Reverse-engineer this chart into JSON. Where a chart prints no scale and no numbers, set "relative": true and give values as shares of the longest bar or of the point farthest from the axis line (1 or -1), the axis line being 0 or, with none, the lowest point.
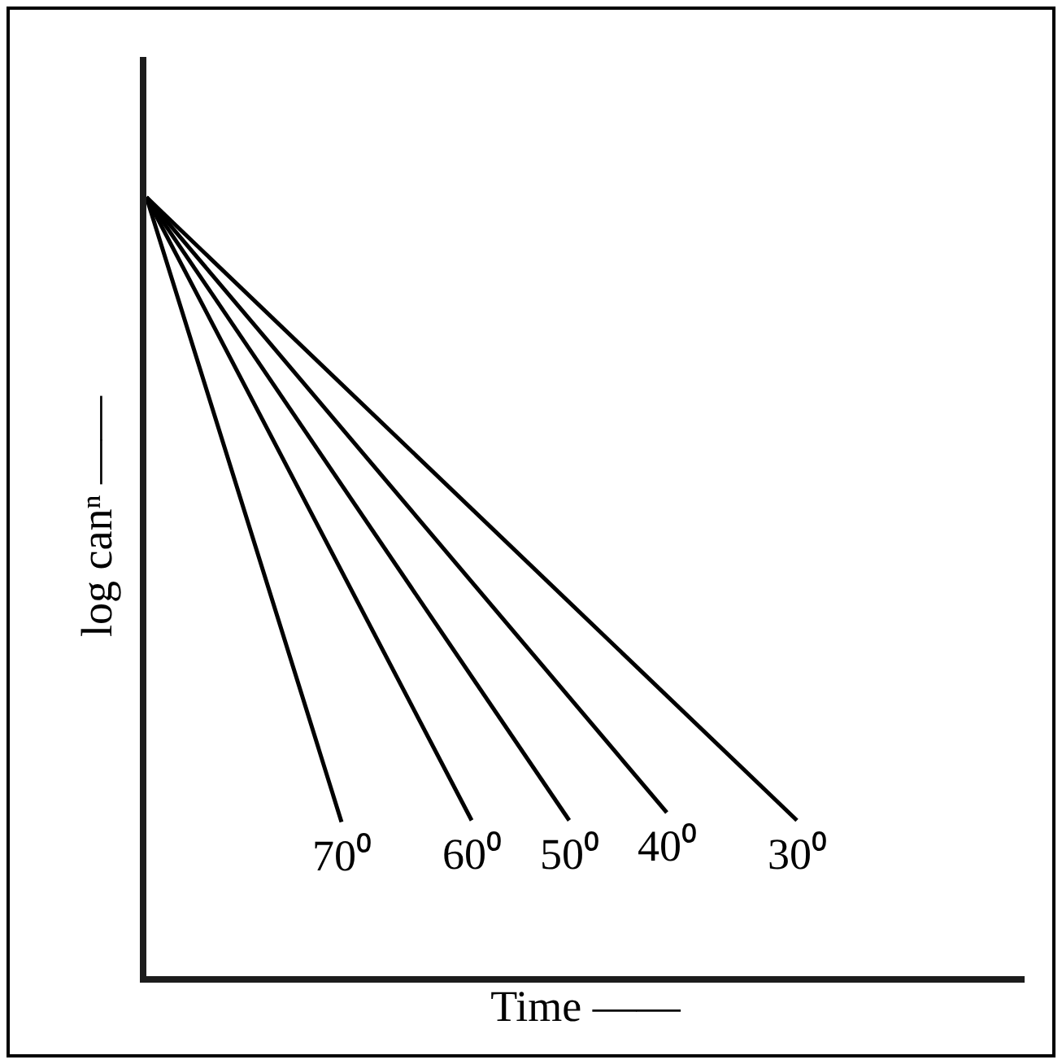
{
  "chart_data": {
    "type": "line",
    "relative": true,
    "xlabel": "Time ——",
    "ylabel": "log canⁿ ——",
    "grid": false,
    "legend": false,
    "marker": "none",
    "line_style": "solid",
    "categories": [
      null,
      null,
      null,
      null,
      null,
      null,
      null,
      null,
      null,
      null,
      null,
      null,
      null,
      null,
      null,
      null,
      null,
      null,
      null,
      null,
      null,
      null,
      null,
      null,
      null,
      null,
      null,
      null
    ],
    "series": [
      {
        "name": "70⁰",
        "color": "#000000",
        "values": [
          1,
          null,
          null,
          null,
          null,
          null,
          0.198,
          null,
          null,
          null,
          null,
          null,
          null,
          null,
          null,
          null,
          null,
          null,
          null,
          null,
          null,
          null,
          null,
          null,
          null,
          null,
          null,
          null
        ]
      },
      {
        "name": "60⁰",
        "color": "#000000",
        "values": [
          1,
          null,
          null,
          null,
          null,
          null,
          null,
          null,
          null,
          null,
          0.2,
          null,
          null,
          null,
          null,
          null,
          null,
          null,
          null,
          null,
          null,
          null,
          null,
          null,
          null,
          null,
          null,
          null
        ]
      },
      {
        "name": "50⁰",
        "color": "#000000",
        "values": [
          1,
          null,
          null,
          null,
          null,
          null,
          null,
          null,
          null,
          null,
          null,
          null,
          null,
          0.2,
          null,
          null,
          null,
          null,
          null,
          null,
          null,
          null,
          null,
          null,
          null,
          null,
          null,
          null
        ]
      },
      {
        "name": "40⁰",
        "color": "#000000",
        "values": [
          1,
          null,
          null,
          null,
          null,
          null,
          null,
          null,
          null,
          null,
          null,
          null,
          null,
          null,
          null,
          null,
          0.21,
          null,
          null,
          null,
          null,
          null,
          null,
          null,
          null,
          null,
          null,
          null
        ]
      },
      {
        "name": "30⁰",
        "color": "#000000",
        "values": [
          1,
          null,
          null,
          null,
          null,
          null,
          null,
          null,
          null,
          null,
          null,
          null,
          null,
          null,
          null,
          null,
          null,
          null,
          null,
          null,
          0.2,
          null,
          null,
          null,
          null,
          null,
          null,
          null
        ]
      }
    ]
  }
}
